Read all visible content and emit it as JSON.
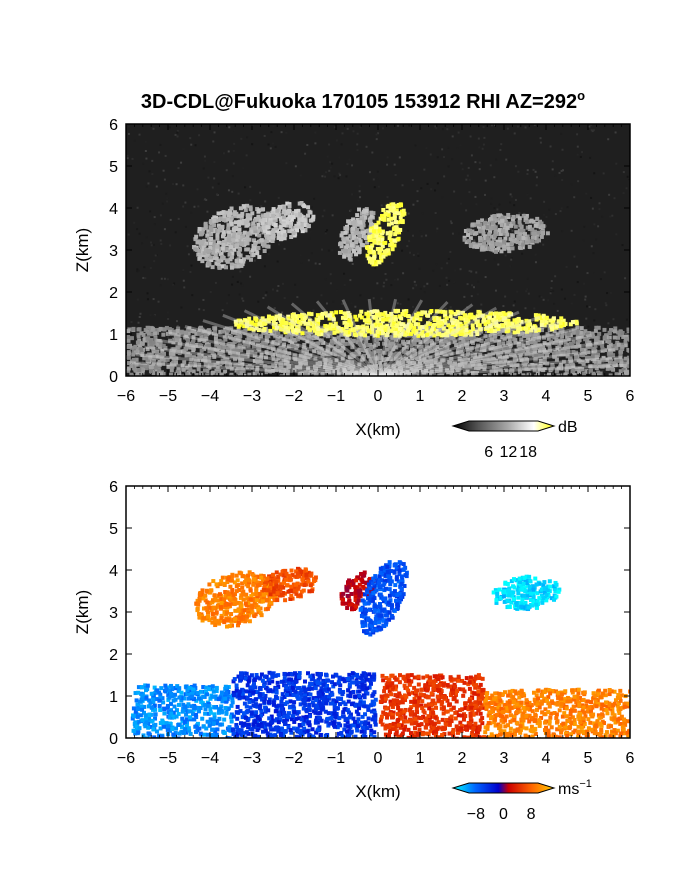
{
  "chart_data": [
    {
      "type": "heatmap",
      "title": "3D-CDL@Fukuoka 170105 153912 RHI AZ=292",
      "title_superscript": "o",
      "xlabel": "X(km)",
      "ylabel": "Z(km)",
      "xlim": [
        -6,
        6
      ],
      "ylim": [
        0,
        6
      ],
      "xticks": [
        -6,
        -5,
        -4,
        -3,
        -2,
        -1,
        0,
        1,
        2,
        3,
        4,
        5,
        6
      ],
      "yticks": [
        0,
        1,
        2,
        3,
        4,
        5,
        6
      ],
      "background": "#1f1f1f",
      "colorbar": {
        "unit": "dB",
        "ticks": [
          6,
          12,
          18
        ],
        "range": [
          0,
          21
        ],
        "colors": [
          "#000000",
          "#555555",
          "#aaaaaa",
          "#ffffff",
          "#ffff00"
        ]
      },
      "regions": [
        {
          "feature": "plume",
          "x": [
            -4.4,
            -2.5
          ],
          "z": [
            2.6,
            4.1
          ],
          "intensity_db": 11
        },
        {
          "feature": "plume",
          "x": [
            -2.8,
            -1.6
          ],
          "z": [
            3.3,
            4.2
          ],
          "intensity_db": 12
        },
        {
          "feature": "plume",
          "x": [
            -0.9,
            -0.2
          ],
          "z": [
            2.8,
            4.1
          ],
          "intensity_db": 11
        },
        {
          "feature": "core",
          "x": [
            -0.25,
            0.5
          ],
          "z": [
            2.7,
            4.2
          ],
          "intensity_db": 19
        },
        {
          "feature": "plume",
          "x": [
            2.0,
            4.0
          ],
          "z": [
            3.0,
            3.9
          ],
          "intensity_db": 10
        },
        {
          "feature": "boundary-layer",
          "x": [
            -6,
            6
          ],
          "z": [
            0,
            1.2
          ],
          "intensity_db": 9
        },
        {
          "feature": "layer-top",
          "x": [
            -3.5,
            4.7
          ],
          "z": [
            1.0,
            1.6
          ],
          "intensity_db": 19
        }
      ]
    },
    {
      "type": "heatmap",
      "xlabel": "X(km)",
      "ylabel": "Z(km)",
      "xlim": [
        -6,
        6
      ],
      "ylim": [
        0,
        6
      ],
      "xticks": [
        -6,
        -5,
        -4,
        -3,
        -2,
        -1,
        0,
        1,
        2,
        3,
        4,
        5,
        6
      ],
      "yticks": [
        0,
        1,
        2,
        3,
        4,
        5,
        6
      ],
      "background": "#ffffff",
      "colorbar": {
        "unit": "ms",
        "unit_superscript": "−1",
        "ticks": [
          "−8",
          "0",
          "8"
        ],
        "tick_values": [
          -8,
          0,
          8
        ],
        "range": [
          -10,
          10
        ],
        "colors": [
          "#00ffff",
          "#0066ff",
          "#0000cc",
          "#cc0000",
          "#ff6600",
          "#ffcc00"
        ]
      },
      "regions": [
        {
          "feature": "plume",
          "x": [
            -4.4,
            -2.5
          ],
          "z": [
            2.7,
            4.0
          ],
          "velocity_ms": 7
        },
        {
          "feature": "plume",
          "x": [
            -2.8,
            -1.5
          ],
          "z": [
            3.3,
            4.1
          ],
          "velocity_ms": 5
        },
        {
          "feature": "plume",
          "x": [
            -0.9,
            -0.15
          ],
          "z": [
            3.1,
            4.0
          ],
          "velocity_ms": 2
        },
        {
          "feature": "core",
          "x": [
            -0.4,
            0.55
          ],
          "z": [
            2.5,
            4.3
          ],
          "velocity_ms": -5
        },
        {
          "feature": "plume",
          "x": [
            2.7,
            4.3
          ],
          "z": [
            3.1,
            3.9
          ],
          "velocity_ms": -9
        },
        {
          "feature": "boundary-layer",
          "x": [
            -5.9,
            -3.5
          ],
          "z": [
            0,
            1.3
          ],
          "velocity_ms": -7
        },
        {
          "feature": "boundary-layer",
          "x": [
            -3.5,
            -0.1
          ],
          "z": [
            0,
            1.6
          ],
          "velocity_ms": -4
        },
        {
          "feature": "boundary-layer",
          "x": [
            0,
            2.5
          ],
          "z": [
            0,
            1.55
          ],
          "velocity_ms": 4
        },
        {
          "feature": "boundary-layer",
          "x": [
            2.5,
            6
          ],
          "z": [
            0,
            1.2
          ],
          "velocity_ms": 7
        }
      ]
    }
  ]
}
